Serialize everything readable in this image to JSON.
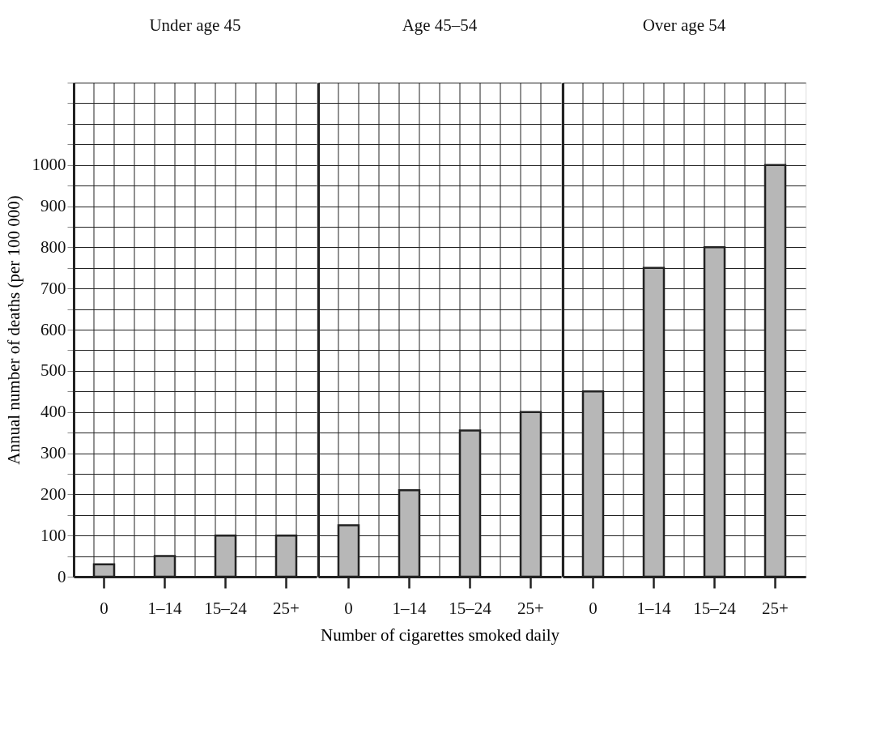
{
  "chart_data": [
    {
      "type": "bar",
      "title": "Under age 45",
      "ylabel": "Annual number of deaths (per 100 000)",
      "categories": [
        "0",
        "1–14",
        "15–24",
        "25+"
      ],
      "series": [
        {
          "color": "#b7b7b7",
          "values": [
            30,
            50,
            100,
            100
          ]
        }
      ],
      "ylim": [
        0,
        1200
      ],
      "yticks": [
        0,
        {
          "value": 50,
          "label": null
        },
        100,
        {
          "value": 150,
          "label": null
        },
        200,
        {
          "value": 250,
          "label": null
        },
        300,
        {
          "value": 350,
          "label": null
        },
        400,
        {
          "value": 450,
          "label": null
        },
        500,
        {
          "value": 550,
          "label": null
        },
        600,
        {
          "value": 650,
          "label": null
        },
        700,
        {
          "value": 750,
          "label": null
        },
        800,
        {
          "value": 850,
          "label": null
        },
        900,
        {
          "value": 950,
          "label": null
        },
        1000,
        {
          "value": 1050,
          "label": null
        },
        {
          "value": 1100,
          "label": null
        },
        {
          "value": 1150,
          "label": null
        },
        {
          "value": 1200,
          "label": null
        }
      ],
      "grid": true
    },
    {
      "type": "bar",
      "title": "Age 45–54",
      "xlabel": "Number of cigarettes smoked daily",
      "categories": [
        "0",
        "1–14",
        "15–24",
        "25+"
      ],
      "series": [
        {
          "color": "#b7b7b7",
          "values": [
            125,
            210,
            355,
            400
          ]
        }
      ],
      "ylim": [
        0,
        1200
      ],
      "tick_labels": "x",
      "grid": true
    },
    {
      "type": "bar",
      "title": "Over age 54",
      "categories": [
        "0",
        "1–14",
        "15–24",
        "25+"
      ],
      "series": [
        {
          "color": "#b7b7b7",
          "values": [
            450,
            750,
            800,
            1000
          ]
        }
      ],
      "ylim": [
        0,
        1200
      ],
      "tick_labels": "x",
      "grid": true
    }
  ]
}
